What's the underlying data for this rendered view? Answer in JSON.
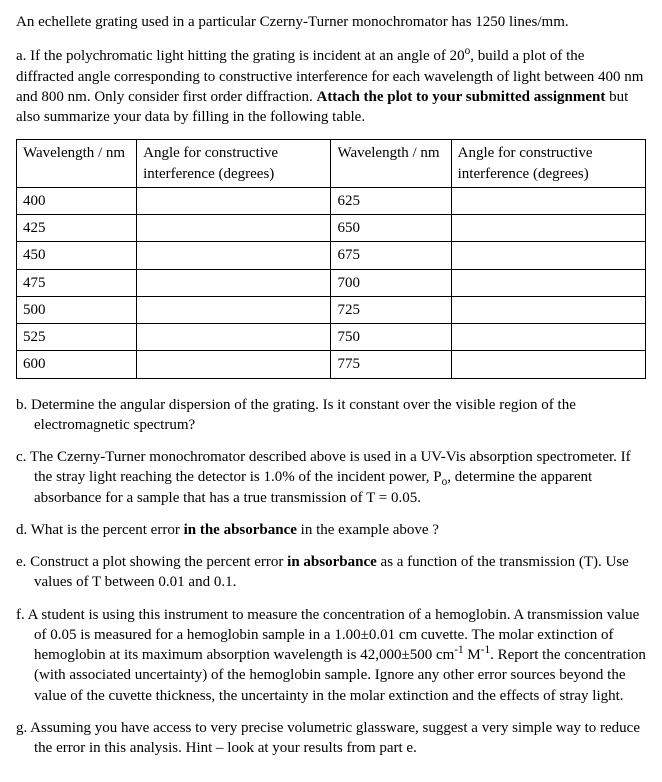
{
  "intro": "An echellete grating used in a particular Czerny-Turner monochromator has 1250 lines/mm.",
  "a": {
    "text_pre": "a. If the polychromatic light hitting the grating is incident at an angle of 20",
    "deg": "o",
    "text_mid": ", build a plot of the diffracted angle corresponding to constructive interference for each wavelength of light between 400 nm and 800 nm. Only consider first order diffraction. ",
    "bold": "Attach the plot to your submitted assignment",
    "text_post": " but also summarize your data by filling in the following table."
  },
  "table": {
    "headers": {
      "wl": "Wavelength / nm",
      "ang": "Angle for constructive interference (degrees)"
    },
    "left_wl": [
      "400",
      "425",
      "450",
      "475",
      "500",
      "525",
      "600"
    ],
    "right_wl": [
      "625",
      "650",
      "675",
      "700",
      "725",
      "750",
      "775"
    ]
  },
  "b": "b. Determine the angular dispersion of the grating. Is it constant over the visible region of the electromagnetic spectrum?",
  "c": {
    "pre": "c. The Czerny-Turner monochromator described above is used in a UV-Vis absorption spectrometer. If the stray light reaching the detector is 1.0% of the incident power, P",
    "sub": "o",
    "post": ", determine the apparent absorbance for a sample that has a true transmission of T = 0.05."
  },
  "d": {
    "pre": "d. What is the percent error ",
    "bold": "in the absorbance",
    "post": " in the example above ?"
  },
  "e": {
    "pre": "e. Construct a plot showing the percent error ",
    "bold": "in absorbance",
    "post": " as a function of the transmission (T). Use values of T between 0.01 and 0.1."
  },
  "f": {
    "pre": "f. A student is using this instrument to measure the concentration of a hemoglobin. A transmission value of 0.05 is measured for a hemoglobin sample in a 1.00±0.01 cm cuvette. The molar extinction of hemoglobin at its maximum absorption wavelength is 42,000±500 cm",
    "sup1": "-1",
    "mid": " M",
    "sup2": "-1",
    "post": ". Report the concentration (with associated uncertainty) of the hemoglobin sample. Ignore any other error sources beyond the value of the cuvette thickness, the uncertainty in the molar extinction and the effects of stray light."
  },
  "g": "g. Assuming you have access to very precise volumetric glassware, suggest a very simple way to reduce the error in this analysis. Hint – look at your results from part e."
}
